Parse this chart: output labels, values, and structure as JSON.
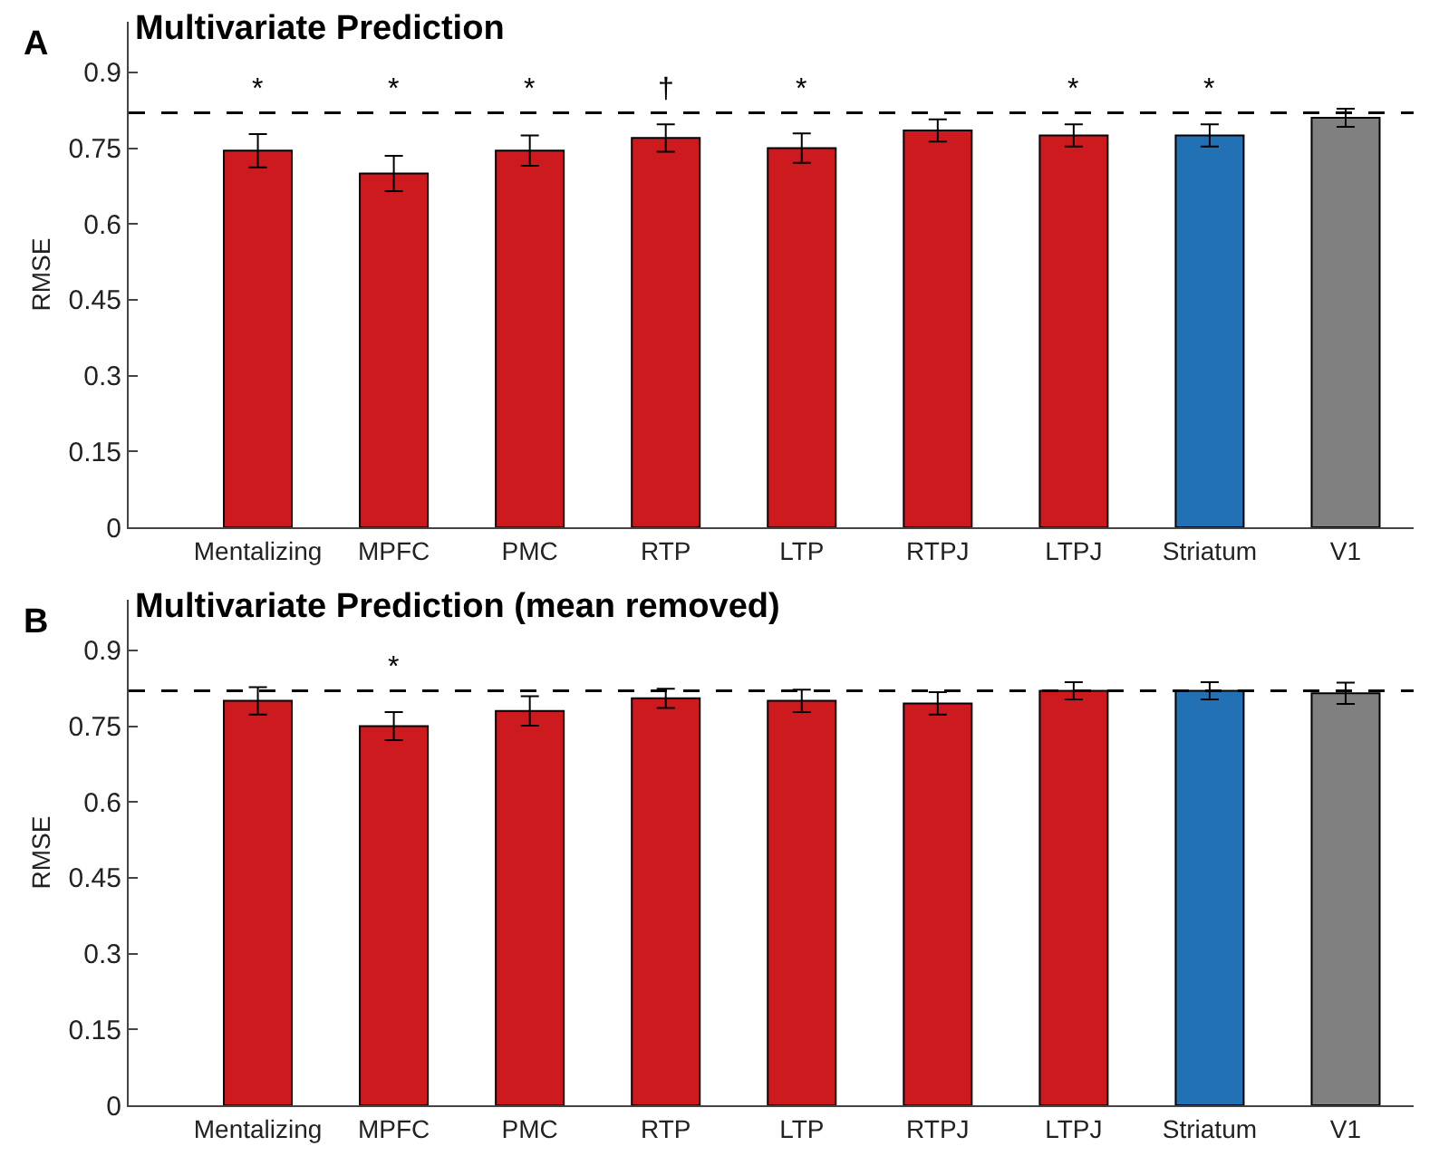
{
  "chart_data": [
    {
      "type": "bar",
      "title": "Multivariate Prediction",
      "ylabel": "RMSE",
      "annotations": [
        "A"
      ],
      "value_labels": [
        "*",
        "*",
        "*",
        "†",
        "*",
        null,
        "*",
        "*",
        null
      ],
      "categories": [
        "Mentalizing",
        "MPFC",
        "PMC",
        "RTP",
        "LTP",
        "RTPJ",
        "LTPJ",
        "Striatum",
        "V1"
      ],
      "values": [
        0.745,
        0.7,
        0.745,
        0.77,
        0.75,
        0.785,
        0.775,
        0.775,
        0.81
      ],
      "errors": [
        0.033,
        0.035,
        0.03,
        0.027,
        0.029,
        0.022,
        0.022,
        0.022,
        0.018
      ],
      "colors": [
        "#cc1a1f",
        "#cc1a1f",
        "#cc1a1f",
        "#cc1a1f",
        "#cc1a1f",
        "#cc1a1f",
        "#cc1a1f",
        "#2271b5",
        "#808080"
      ],
      "ylim": [
        0,
        1
      ],
      "yticks": [
        0,
        0.15,
        0.3,
        0.45,
        0.6,
        0.75,
        0.9
      ],
      "ref_lines": [
        {
          "axis": "y",
          "value": 0.82,
          "line_style": "dashed",
          "color": "#000000"
        }
      ],
      "grid": false
    },
    {
      "type": "bar",
      "title": "Multivariate Prediction (mean removed)",
      "ylabel": "RMSE",
      "annotations": [
        "B"
      ],
      "value_labels": [
        null,
        "*",
        null,
        null,
        null,
        null,
        null,
        null,
        null
      ],
      "categories": [
        "Mentalizing",
        "MPFC",
        "PMC",
        "RTP",
        "LTP",
        "RTPJ",
        "LTPJ",
        "Striatum",
        "V1"
      ],
      "values": [
        0.8,
        0.75,
        0.78,
        0.805,
        0.8,
        0.795,
        0.82,
        0.82,
        0.815
      ],
      "errors": [
        0.027,
        0.028,
        0.029,
        0.019,
        0.022,
        0.022,
        0.017,
        0.017,
        0.021
      ],
      "colors": [
        "#cc1a1f",
        "#cc1a1f",
        "#cc1a1f",
        "#cc1a1f",
        "#cc1a1f",
        "#cc1a1f",
        "#cc1a1f",
        "#2271b5",
        "#808080"
      ],
      "ylim": [
        0,
        1
      ],
      "yticks": [
        0,
        0.15,
        0.3,
        0.45,
        0.6,
        0.75,
        0.9
      ],
      "ref_lines": [
        {
          "axis": "y",
          "value": 0.82,
          "line_style": "dashed",
          "color": "#000000"
        }
      ],
      "grid": false
    }
  ]
}
